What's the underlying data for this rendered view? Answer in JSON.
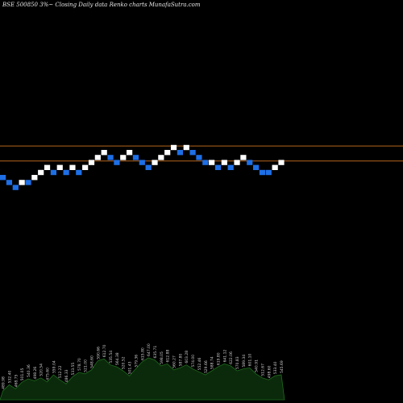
{
  "title": "BSE 500850  3%~  Closing Daily data  Renko  charts MunafaSutra.com",
  "colors": {
    "background": "#000000",
    "up_brick": "#ffffff",
    "down_brick": "#1e6fe6",
    "reference_line": "#b5651d",
    "volume_fill": "#0b2a0b",
    "volume_stroke": "#1f6b1f",
    "volume_label": "#d0d0d0"
  },
  "chart_data": {
    "type": "renko",
    "brick_size": "3%",
    "bricks": [
      {
        "dir": "down",
        "level": 0
      },
      {
        "dir": "down",
        "level": -1
      },
      {
        "dir": "down",
        "level": -2
      },
      {
        "dir": "up",
        "level": -1
      },
      {
        "dir": "down",
        "level": -1
      },
      {
        "dir": "up",
        "level": 0
      },
      {
        "dir": "up",
        "level": 1
      },
      {
        "dir": "up",
        "level": 2
      },
      {
        "dir": "down",
        "level": 1
      },
      {
        "dir": "up",
        "level": 2
      },
      {
        "dir": "down",
        "level": 1
      },
      {
        "dir": "up",
        "level": 2
      },
      {
        "dir": "down",
        "level": 1
      },
      {
        "dir": "up",
        "level": 2
      },
      {
        "dir": "up",
        "level": 3
      },
      {
        "dir": "up",
        "level": 4
      },
      {
        "dir": "up",
        "level": 5
      },
      {
        "dir": "down",
        "level": 4
      },
      {
        "dir": "down",
        "level": 3
      },
      {
        "dir": "up",
        "level": 4
      },
      {
        "dir": "up",
        "level": 5
      },
      {
        "dir": "down",
        "level": 4
      },
      {
        "dir": "down",
        "level": 3
      },
      {
        "dir": "down",
        "level": 2
      },
      {
        "dir": "up",
        "level": 3
      },
      {
        "dir": "up",
        "level": 4
      },
      {
        "dir": "up",
        "level": 5
      },
      {
        "dir": "up",
        "level": 6
      },
      {
        "dir": "down",
        "level": 5
      },
      {
        "dir": "up",
        "level": 6
      },
      {
        "dir": "down",
        "level": 5
      },
      {
        "dir": "down",
        "level": 4
      },
      {
        "dir": "down",
        "level": 3
      },
      {
        "dir": "up",
        "level": 3
      },
      {
        "dir": "down",
        "level": 2
      },
      {
        "dir": "up",
        "level": 3
      },
      {
        "dir": "down",
        "level": 2
      },
      {
        "dir": "up",
        "level": 3
      },
      {
        "dir": "up",
        "level": 4
      },
      {
        "dir": "down",
        "level": 3
      },
      {
        "dir": "down",
        "level": 2
      },
      {
        "dir": "down",
        "level": 1
      },
      {
        "dir": "down",
        "level": 1
      },
      {
        "dir": "up",
        "level": 2
      },
      {
        "dir": "up",
        "level": 3
      }
    ],
    "reference_levels": [
      6.3,
      3.3
    ],
    "volume_labels": [
      "489.98",
      "532.40",
      "468.75",
      "501.05",
      "540.36",
      "498.26",
      "520.54",
      "475.60",
      "559.04",
      "512.22",
      "486.33",
      "533.55",
      "578.70",
      "521.00",
      "548.60",
      "590.66",
      "612.70",
      "535.54",
      "564.38",
      "520.52",
      "501.43",
      "579.36",
      "615.80",
      "647.00",
      "635.71",
      "598.05",
      "612.88",
      "560.27",
      "587.80",
      "603.28",
      "574.00",
      "552.46",
      "529.66",
      "588.74",
      "619.80",
      "641.12",
      "622.06",
      "570.83",
      "589.34",
      "601.10",
      "540.91",
      "512.67",
      "498.60",
      "533.40",
      "545.69"
    ],
    "volume_values": [
      18,
      30,
      22,
      35,
      42,
      38,
      44,
      36,
      50,
      40,
      32,
      46,
      55,
      52,
      60,
      78,
      82,
      70,
      66,
      58,
      48,
      62,
      76,
      84,
      80,
      68,
      72,
      60,
      64,
      70,
      62,
      56,
      50,
      58,
      66,
      72,
      68,
      58,
      62,
      64,
      52,
      44,
      40,
      48,
      50
    ]
  }
}
